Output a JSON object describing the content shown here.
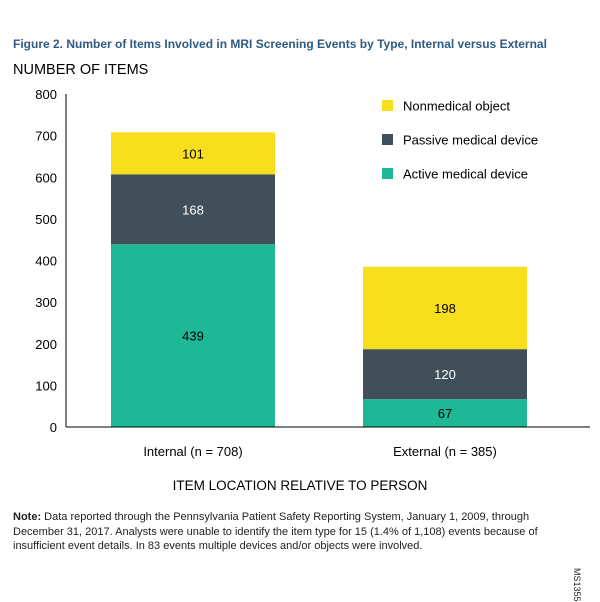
{
  "figure_title": "Figure 2. Number of Items Involved in MRI Screening Events by Type, Internal versus External",
  "note_label": "Note:",
  "note_text": "Data reported through the Pennsylvania Patient Safety Reporting System, January 1, 2009, through December 31, 2017. Analysts were unable to identify the item type for 15 (1.4% of 1,108) events because of insufficient event details. In 83 events multiple devices and/or objects were involved.",
  "figure_code": "MS1355",
  "colors": {
    "active": "#1fb896",
    "passive": "#404f5a",
    "nonmedical": "#f7df1e"
  },
  "chart_data": {
    "type": "bar",
    "stacked": true,
    "title": "Figure 2. Number of Items Involved in MRI Screening Events by Type, Internal versus External",
    "xlabel": "ITEM LOCATION RELATIVE TO PERSON",
    "ylabel": "NUMBER OF ITEMS",
    "ylim": [
      0,
      800
    ],
    "yticks": [
      0,
      100,
      200,
      300,
      400,
      500,
      600,
      700,
      800
    ],
    "categories": [
      "Internal (n = 708)",
      "External (n = 385)"
    ],
    "series": [
      {
        "name": "Active medical device",
        "values": [
          439,
          67
        ]
      },
      {
        "name": "Passive medical device",
        "values": [
          168,
          120
        ]
      },
      {
        "name": "Nonmedical object",
        "values": [
          101,
          198
        ]
      }
    ],
    "legend_order": [
      "Nonmedical object",
      "Passive medical device",
      "Active medical device"
    ],
    "legend_position": "top-right",
    "grid": false
  }
}
